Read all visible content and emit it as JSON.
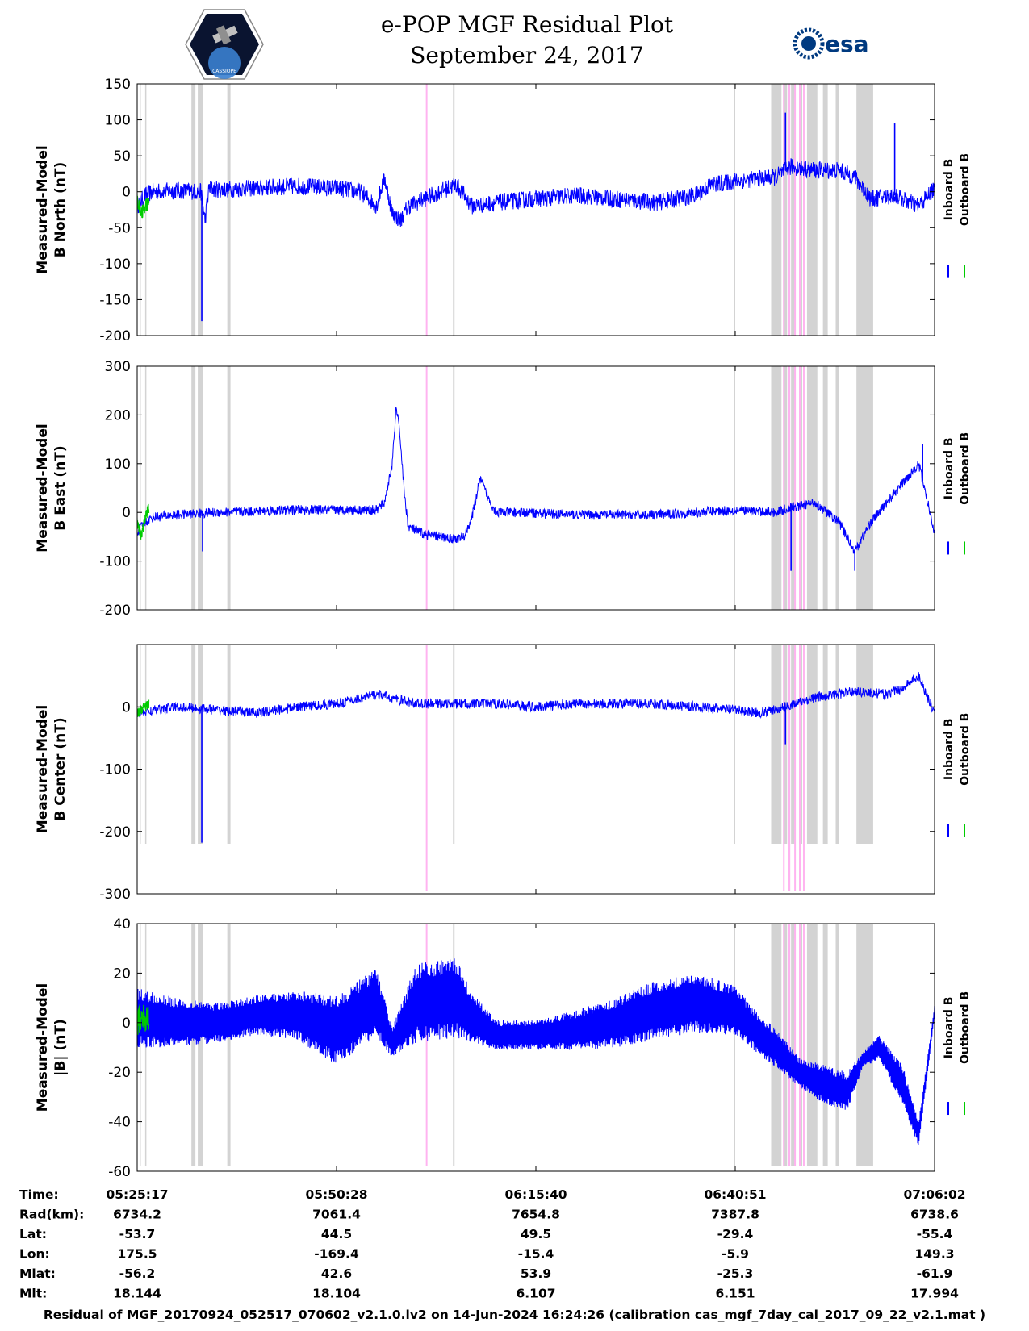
{
  "header": {
    "title_line1": "e-POP MGF Residual Plot",
    "title_line2": "September 24, 2017",
    "logo_left_text": "CASSIOPE",
    "logo_right_text": "esa"
  },
  "legend": {
    "inboard": "Inboard B",
    "outboard": "Outboard B"
  },
  "colors": {
    "inboard": "#0000ff",
    "outboard": "#00cc00",
    "gray_band": "#d3d3d3",
    "pink_band": "#ffb3f0"
  },
  "chart_data": [
    {
      "type": "line",
      "ylabel": [
        "Measured-Model",
        "B North (nT)"
      ],
      "ylim": [
        -200,
        150
      ],
      "yticks": [
        -200,
        -150,
        -100,
        -50,
        0,
        50,
        100,
        150
      ],
      "xlim": [
        0,
        100
      ],
      "series": [
        {
          "name": "Inboard B",
          "x": [
            0,
            1,
            2,
            5,
            8,
            8.5,
            9,
            10,
            15,
            20,
            25,
            28,
            30,
            31,
            32,
            33,
            34,
            36,
            38,
            40,
            42,
            45,
            50,
            55,
            60,
            65,
            70,
            72,
            75,
            80,
            82,
            85,
            88,
            90,
            92,
            95,
            98,
            100
          ],
          "y": [
            -20,
            -5,
            0,
            2,
            0,
            -40,
            5,
            3,
            5,
            8,
            5,
            0,
            -20,
            20,
            -30,
            -40,
            -20,
            -10,
            0,
            10,
            -20,
            -15,
            -10,
            -5,
            -10,
            -15,
            -5,
            10,
            15,
            20,
            35,
            30,
            30,
            20,
            -10,
            -5,
            -20,
            5
          ],
          "spikes": [
            [
              8.1,
              -180
            ],
            [
              81.3,
              110
            ],
            [
              95,
              95
            ]
          ],
          "noise": 12
        },
        {
          "name": "Outboard B",
          "x": [
            0,
            0.5,
            1,
            1.5
          ],
          "y": [
            -10,
            -30,
            -20,
            -15
          ],
          "noise": 10
        }
      ]
    },
    {
      "type": "line",
      "ylabel": [
        "Measured-Model",
        "B East (nT)"
      ],
      "ylim": [
        -200,
        300
      ],
      "yticks": [
        -200,
        -100,
        0,
        100,
        200,
        300
      ],
      "xlim": [
        0,
        100
      ],
      "series": [
        {
          "name": "Inboard B",
          "x": [
            0,
            1,
            2,
            5,
            10,
            20,
            30,
            31,
            32,
            32.5,
            33,
            33.5,
            34,
            36,
            40,
            41,
            42,
            43,
            44,
            45,
            48,
            55,
            60,
            65,
            70,
            75,
            80,
            82,
            85,
            88,
            90,
            92,
            94,
            96,
            98,
            100
          ],
          "y": [
            -40,
            -20,
            -10,
            -5,
            0,
            5,
            5,
            20,
            100,
            220,
            150,
            40,
            -30,
            -45,
            -55,
            -50,
            -10,
            70,
            30,
            0,
            0,
            -5,
            -5,
            -5,
            0,
            5,
            0,
            10,
            20,
            -20,
            -80,
            -20,
            20,
            60,
            100,
            -40
          ],
          "spikes": [
            [
              8.2,
              -80
            ],
            [
              82,
              -120
            ],
            [
              90,
              -120
            ],
            [
              98.5,
              140
            ]
          ],
          "noise": 10
        },
        {
          "name": "Outboard B",
          "x": [
            0,
            0.5,
            1,
            1.5
          ],
          "y": [
            -20,
            -50,
            -10,
            10
          ],
          "noise": 12
        }
      ]
    },
    {
      "type": "line",
      "ylabel": [
        "Measured-Model",
        "B Center (nT)"
      ],
      "ylim": [
        -300,
        100
      ],
      "yticks": [
        -300,
        -200,
        -100,
        0
      ],
      "xlim": [
        0,
        100
      ],
      "series": [
        {
          "name": "Inboard B",
          "x": [
            0,
            5,
            10,
            15,
            20,
            25,
            30,
            35,
            40,
            45,
            50,
            55,
            60,
            65,
            70,
            75,
            78,
            80,
            85,
            90,
            94,
            96,
            98,
            100
          ],
          "y": [
            -10,
            0,
            -5,
            -10,
            0,
            5,
            20,
            5,
            5,
            5,
            0,
            5,
            5,
            5,
            0,
            -5,
            -10,
            -5,
            15,
            25,
            20,
            30,
            50,
            -10
          ],
          "spikes": [
            [
              8.1,
              -218
            ],
            [
              81.3,
              -60
            ]
          ],
          "noise": 8
        },
        {
          "name": "Outboard B",
          "x": [
            0,
            0.5,
            1,
            1.5
          ],
          "y": [
            -10,
            -5,
            0,
            5
          ],
          "noise": 8
        }
      ]
    },
    {
      "type": "line",
      "ylabel": [
        "Measured-Model",
        "|B| (nT)"
      ],
      "ylim": [
        -60,
        40
      ],
      "yticks": [
        -60,
        -40,
        -20,
        0,
        20,
        40
      ],
      "xlim": [
        0,
        100
      ],
      "series": [
        {
          "name": "Inboard B",
          "x": [
            0,
            5,
            10,
            15,
            20,
            25,
            30,
            32,
            35,
            40,
            42,
            45,
            50,
            55,
            60,
            65,
            70,
            75,
            78,
            80,
            83,
            86,
            89,
            91,
            93,
            96,
            98,
            100
          ],
          "y": [
            2,
            0,
            0,
            3,
            3,
            -3,
            8,
            -8,
            8,
            10,
            2,
            -5,
            -5,
            -3,
            0,
            5,
            8,
            5,
            -5,
            -10,
            -20,
            -25,
            -28,
            -15,
            -10,
            -25,
            -45,
            5
          ],
          "band": [
            [
              0,
              12
            ],
            [
              5,
              10
            ],
            [
              10,
              8
            ],
            [
              15,
              8
            ],
            [
              20,
              10
            ],
            [
              25,
              14
            ],
            [
              30,
              14
            ],
            [
              32,
              6
            ],
            [
              35,
              16
            ],
            [
              40,
              16
            ],
            [
              42,
              10
            ],
            [
              45,
              6
            ],
            [
              50,
              6
            ],
            [
              55,
              8
            ],
            [
              60,
              10
            ],
            [
              65,
              12
            ],
            [
              70,
              12
            ],
            [
              75,
              10
            ],
            [
              78,
              8
            ],
            [
              80,
              8
            ],
            [
              83,
              6
            ],
            [
              86,
              8
            ],
            [
              89,
              8
            ],
            [
              91,
              3
            ],
            [
              93,
              5
            ],
            [
              96,
              8
            ],
            [
              98,
              5
            ],
            [
              100,
              2
            ]
          ]
        },
        {
          "name": "Outboard B",
          "x": [
            0,
            0.5,
            1,
            1.5
          ],
          "y": [
            0,
            3,
            2,
            0
          ],
          "noise": 6
        }
      ]
    }
  ],
  "markers": {
    "gray": [
      [
        0.3,
        0.4
      ],
      [
        1.0,
        1.15
      ],
      [
        6.8,
        7.3
      ],
      [
        7.6,
        8.2
      ],
      [
        11.3,
        11.7
      ],
      [
        39.6,
        39.8
      ],
      [
        74.8,
        75.0
      ],
      [
        79.5,
        80.8
      ],
      [
        81.0,
        81.5
      ],
      [
        82.0,
        82.5
      ],
      [
        83.0,
        83.4
      ],
      [
        84.0,
        85.3
      ],
      [
        86.0,
        86.6
      ],
      [
        87.6,
        88.0
      ],
      [
        90.2,
        92.3
      ]
    ],
    "pink": [
      [
        36.2,
        36.4
      ],
      [
        81.0,
        81.2
      ],
      [
        81.6,
        81.9
      ],
      [
        82.4,
        82.6
      ],
      [
        83.0,
        83.2
      ],
      [
        83.5,
        83.7
      ]
    ]
  },
  "x_axis": {
    "row_labels": [
      "Time:",
      "Rad(km):",
      "Lat:",
      "Lon:",
      "Mlat:",
      "Mlt:"
    ],
    "ticks": [
      {
        "time": "05:25:17",
        "rad": "6734.2",
        "lat": "-53.7",
        "lon": "175.5",
        "mlat": "-56.2",
        "mlt": "18.144"
      },
      {
        "time": "05:50:28",
        "rad": "7061.4",
        "lat": "44.5",
        "lon": "-169.4",
        "mlat": "42.6",
        "mlt": "18.104"
      },
      {
        "time": "06:15:40",
        "rad": "7654.8",
        "lat": "49.5",
        "lon": "-15.4",
        "mlat": "53.9",
        "mlt": "6.107"
      },
      {
        "time": "06:40:51",
        "rad": "7387.8",
        "lat": "-29.4",
        "lon": "-5.9",
        "mlat": "-25.3",
        "mlt": "6.151"
      },
      {
        "time": "07:06:02",
        "rad": "6738.6",
        "lat": "-55.4",
        "lon": "149.3",
        "mlat": "-61.9",
        "mlt": "17.994"
      }
    ]
  },
  "footer": "Residual of MGF_20170924_052517_070602_v2.1.0.lv2 on 14-Jun-2024 16:24:26 (calibration cas_mgf_7day_cal_2017_09_22_v2.1.mat )"
}
